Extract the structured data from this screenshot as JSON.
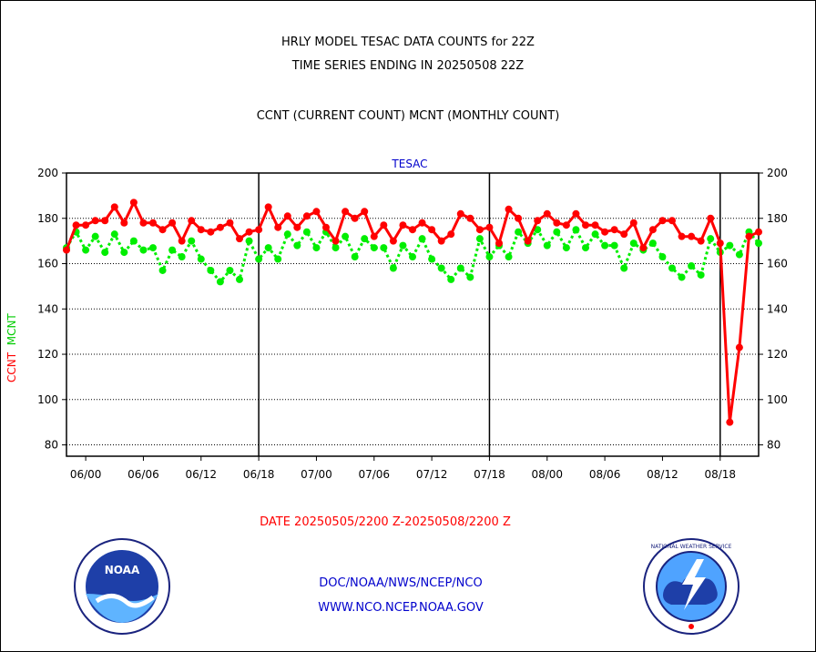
{
  "header": {
    "title_line1": "HRLY MODEL TESAC DATA COUNTS for 22Z",
    "title_line2": "TIME SERIES ENDING IN 20250508 22Z",
    "title_line3": "CCNT (CURRENT COUNT) MCNT (MONTHLY COUNT)"
  },
  "footer": {
    "date_range": "DATE 20250505/2200 Z-20250508/2200 Z",
    "credit_line1": "DOC/NOAA/NWS/NCEP/NCO",
    "credit_line2": "WWW.NCO.NCEP.NOAA.GOV"
  },
  "logos": {
    "noaa_text": "NOAA",
    "nws_text": "NATIONAL WEATHER SERVICE"
  },
  "chart_data": {
    "type": "line",
    "title": "TESAC",
    "ylabel_parts": [
      "CCNT",
      "MCNT"
    ],
    "ylim": [
      75,
      200
    ],
    "yticks": [
      80,
      100,
      120,
      140,
      160,
      180,
      200
    ],
    "x_tick_labels": [
      "06/00",
      "06/06",
      "06/12",
      "06/18",
      "07/00",
      "07/06",
      "07/12",
      "07/18",
      "08/00",
      "08/06",
      "08/12",
      "08/18"
    ],
    "x_tick_hours": [
      2,
      8,
      14,
      20,
      26,
      32,
      38,
      44,
      50,
      56,
      62,
      68
    ],
    "day_boundaries_hours": [
      20,
      44,
      68
    ],
    "x_range_hours": [
      0,
      72
    ],
    "grid": true,
    "colors": {
      "CCNT": "#ff0000",
      "MCNT": "#00ee00",
      "title": "#0000cc"
    },
    "series": [
      {
        "name": "CCNT",
        "style": "solid",
        "values": [
          166,
          177,
          177,
          179,
          179,
          185,
          178,
          187,
          178,
          178,
          175,
          178,
          170,
          179,
          175,
          174,
          176,
          178,
          171,
          174,
          175,
          185,
          176,
          181,
          176,
          181,
          183,
          176,
          170,
          183,
          180,
          183,
          172,
          177,
          170,
          177,
          175,
          178,
          175,
          170,
          173,
          182,
          180,
          175,
          176,
          169,
          184,
          180,
          170,
          179,
          182,
          178,
          177,
          182,
          177,
          177,
          174,
          175,
          173,
          178,
          167,
          175,
          179,
          179,
          172,
          172,
          170,
          180,
          169,
          90,
          123,
          172,
          174
        ]
      },
      {
        "name": "MCNT",
        "style": "dotted",
        "values": [
          167,
          174,
          166,
          172,
          165,
          173,
          165,
          170,
          166,
          167,
          157,
          166,
          163,
          170,
          162,
          157,
          152,
          157,
          153,
          170,
          162,
          167,
          162,
          173,
          168,
          174,
          167,
          174,
          167,
          172,
          163,
          171,
          167,
          167,
          158,
          168,
          163,
          171,
          162,
          158,
          153,
          158,
          154,
          171,
          163,
          168,
          163,
          174,
          169,
          175,
          168,
          174,
          167,
          175,
          167,
          173,
          168,
          168,
          158,
          169,
          166,
          169,
          163,
          158,
          154,
          159,
          155,
          171,
          165,
          168,
          164,
          174,
          169
        ]
      }
    ]
  }
}
